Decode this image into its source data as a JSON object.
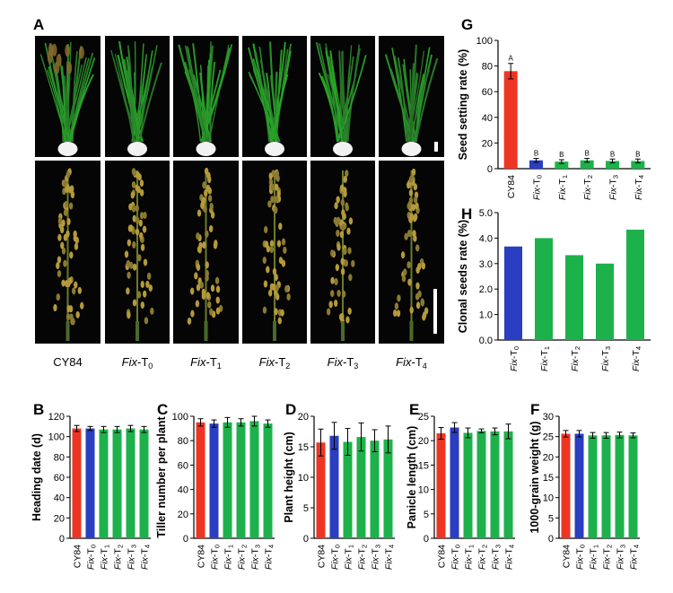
{
  "panels": {
    "A": "A",
    "B": "B",
    "C": "C",
    "D": "D",
    "E": "E",
    "F": "F",
    "G": "G",
    "H": "H"
  },
  "photo_labels": [
    {
      "prefix": "",
      "text": "CY84",
      "sub": ""
    },
    {
      "prefix": "Fix",
      "text": "-T",
      "sub": "0"
    },
    {
      "prefix": "Fix",
      "text": "-T",
      "sub": "1"
    },
    {
      "prefix": "Fix",
      "text": "-T",
      "sub": "2"
    },
    {
      "prefix": "Fix",
      "text": "-T",
      "sub": "3"
    },
    {
      "prefix": "Fix",
      "text": "-T",
      "sub": "4"
    }
  ],
  "colors": {
    "cy84": "#ee3524",
    "t0": "#2a3ec1",
    "fix": "#1db14b",
    "photo_bg": "#050505"
  },
  "chart_data": [
    {
      "panel": "G",
      "type": "bar",
      "ylabel": "Seed setting rate (%)",
      "ylim": [
        0,
        100
      ],
      "yticks": [
        0,
        20,
        40,
        60,
        80,
        100
      ],
      "categories": [
        "CY84",
        "Fix-T0",
        "Fix-T1",
        "Fix-T2",
        "Fix-T3",
        "Fix-T4"
      ],
      "values": [
        76,
        6.5,
        5.5,
        6.5,
        6,
        6
      ],
      "errors": [
        6,
        1.5,
        1.5,
        1.5,
        1.5,
        1.5
      ],
      "letters": [
        "A",
        "B",
        "B",
        "B",
        "B",
        "B"
      ],
      "colors": [
        "#ee3524",
        "#2a3ec1",
        "#1db14b",
        "#1db14b",
        "#1db14b",
        "#1db14b"
      ]
    },
    {
      "panel": "H",
      "type": "bar",
      "ylabel": "Clonal seeds rate (%)",
      "ylim": [
        0,
        5
      ],
      "yticks": [
        "0.0",
        "1.0",
        "2.0",
        "3.0",
        "4.0",
        "5.0"
      ],
      "categories": [
        "Fix-T0",
        "Fix-T1",
        "Fix-T2",
        "Fix-T3",
        "Fix-T4"
      ],
      "values": [
        3.67,
        4.0,
        3.33,
        3.0,
        4.33
      ],
      "colors": [
        "#2a3ec1",
        "#1db14b",
        "#1db14b",
        "#1db14b",
        "#1db14b"
      ]
    },
    {
      "panel": "B",
      "type": "bar",
      "ylabel": "Heading date (d)",
      "ylim": [
        0,
        120
      ],
      "yticks": [
        0,
        20,
        40,
        60,
        80,
        100,
        120
      ],
      "categories": [
        "CY84",
        "Fix-T0",
        "Fix-T1",
        "Fix-T2",
        "Fix-T3",
        "Fix-T4"
      ],
      "values": [
        108,
        108,
        107,
        107,
        108,
        107
      ],
      "errors": [
        3,
        2,
        3,
        3,
        3,
        3
      ],
      "colors": [
        "#ee3524",
        "#2a3ec1",
        "#1db14b",
        "#1db14b",
        "#1db14b",
        "#1db14b"
      ]
    },
    {
      "panel": "C",
      "type": "bar",
      "ylabel": "Tiller number per plant",
      "ylim": [
        0,
        100
      ],
      "yticks": [
        0,
        20,
        40,
        60,
        80,
        100
      ],
      "categories": [
        "CY84",
        "Fix-T0",
        "Fix-T1",
        "Fix-T2",
        "Fix-T3",
        "Fix-T4"
      ],
      "values": [
        95,
        94,
        95,
        95,
        96,
        94
      ],
      "errors": [
        3,
        3,
        4,
        3,
        4,
        3
      ],
      "colors": [
        "#ee3524",
        "#2a3ec1",
        "#1db14b",
        "#1db14b",
        "#1db14b",
        "#1db14b"
      ]
    },
    {
      "panel": "D",
      "type": "bar",
      "ylabel": "Plant height (cm)",
      "ylim": [
        0,
        20
      ],
      "yticks": [
        0,
        5,
        10,
        15,
        20
      ],
      "categories": [
        "CY84",
        "Fix-T0",
        "Fix-T1",
        "Fix-T2",
        "Fix-T3",
        "Fix-T4"
      ],
      "values": [
        15.7,
        16.8,
        15.8,
        16.6,
        16,
        16.2
      ],
      "errors": [
        2.2,
        2.2,
        2.2,
        2.3,
        1.8,
        2.2
      ],
      "colors": [
        "#ee3524",
        "#2a3ec1",
        "#1db14b",
        "#1db14b",
        "#1db14b",
        "#1db14b"
      ]
    },
    {
      "panel": "E",
      "type": "bar",
      "ylabel": "Panicle length (cm)",
      "ylim": [
        0,
        25
      ],
      "yticks": [
        0,
        5,
        10,
        15,
        20,
        25
      ],
      "categories": [
        "CY84",
        "Fix-T0",
        "Fix-T1",
        "Fix-T2",
        "Fix-T3",
        "Fix-T4"
      ],
      "values": [
        21.5,
        22.7,
        21.6,
        22,
        21.9,
        21.9
      ],
      "errors": [
        1.2,
        1.0,
        1.0,
        0.4,
        0.7,
        1.5
      ],
      "colors": [
        "#ee3524",
        "#2a3ec1",
        "#1db14b",
        "#1db14b",
        "#1db14b",
        "#1db14b"
      ]
    },
    {
      "panel": "F",
      "type": "bar",
      "ylabel": "1000-grain weight (g)",
      "ylim": [
        0,
        30
      ],
      "yticks": [
        0,
        5,
        10,
        15,
        20,
        25,
        30
      ],
      "categories": [
        "CY84",
        "Fix-T0",
        "Fix-T1",
        "Fix-T2",
        "Fix-T3",
        "Fix-T4"
      ],
      "values": [
        25.7,
        25.7,
        25.3,
        25.3,
        25.4,
        25.3
      ],
      "errors": [
        0.8,
        0.8,
        0.7,
        0.7,
        0.7,
        0.6
      ],
      "colors": [
        "#ee3524",
        "#2a3ec1",
        "#1db14b",
        "#1db14b",
        "#1db14b",
        "#1db14b"
      ]
    }
  ]
}
